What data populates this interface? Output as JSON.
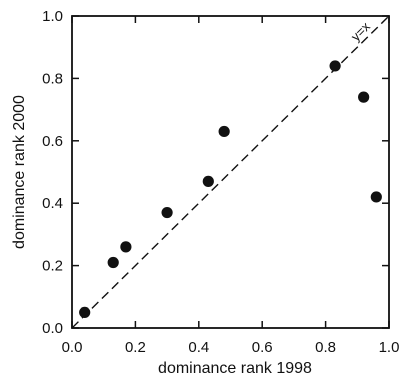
{
  "chart_data": {
    "type": "scatter",
    "title": "",
    "xlabel": "dominance rank 1998",
    "ylabel": "dominance rank 2000",
    "xlim": [
      0.0,
      1.0
    ],
    "ylim": [
      0.0,
      1.0
    ],
    "grid": false,
    "legend": "none",
    "x_ticks": [
      "0.0",
      "0.2",
      "0.4",
      "0.6",
      "0.8",
      "1.0"
    ],
    "y_ticks": [
      "0.0",
      "0.2",
      "0.4",
      "0.6",
      "0.8",
      "1.0"
    ],
    "reference_line": {
      "label": "y=x",
      "style": "dashed"
    },
    "points": [
      {
        "x": 0.04,
        "y": 0.05
      },
      {
        "x": 0.13,
        "y": 0.21
      },
      {
        "x": 0.17,
        "y": 0.26
      },
      {
        "x": 0.3,
        "y": 0.37
      },
      {
        "x": 0.43,
        "y": 0.47
      },
      {
        "x": 0.48,
        "y": 0.63
      },
      {
        "x": 0.83,
        "y": 0.84
      },
      {
        "x": 0.92,
        "y": 0.74
      },
      {
        "x": 0.96,
        "y": 0.42
      }
    ]
  }
}
